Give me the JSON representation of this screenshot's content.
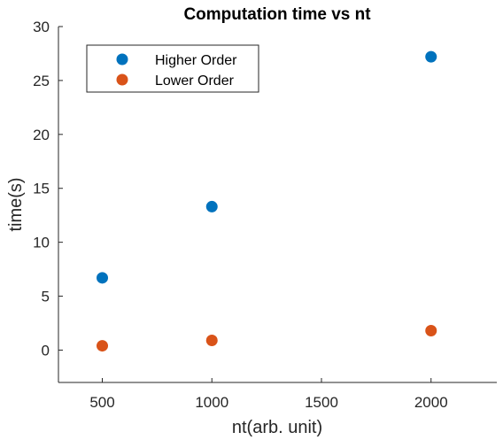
{
  "chart_data": {
    "type": "scatter",
    "title": "Computation time vs nt",
    "xlabel": "nt(arb. unit)",
    "ylabel": "time(s)",
    "xlim": [
      300,
      2300
    ],
    "ylim": [
      -3,
      30
    ],
    "xticks": [
      500,
      1000,
      1500,
      2000
    ],
    "yticks": [
      0,
      5,
      10,
      15,
      20,
      25,
      30
    ],
    "grid": false,
    "legend_position": "top-left",
    "series": [
      {
        "name": "Higher Order",
        "color": "#0072BD",
        "x": [
          500,
          1000,
          2000
        ],
        "y": [
          6.7,
          13.3,
          27.2
        ]
      },
      {
        "name": "Lower Order",
        "color": "#D95319",
        "x": [
          500,
          1000,
          2000
        ],
        "y": [
          0.4,
          0.9,
          1.8
        ]
      }
    ]
  }
}
